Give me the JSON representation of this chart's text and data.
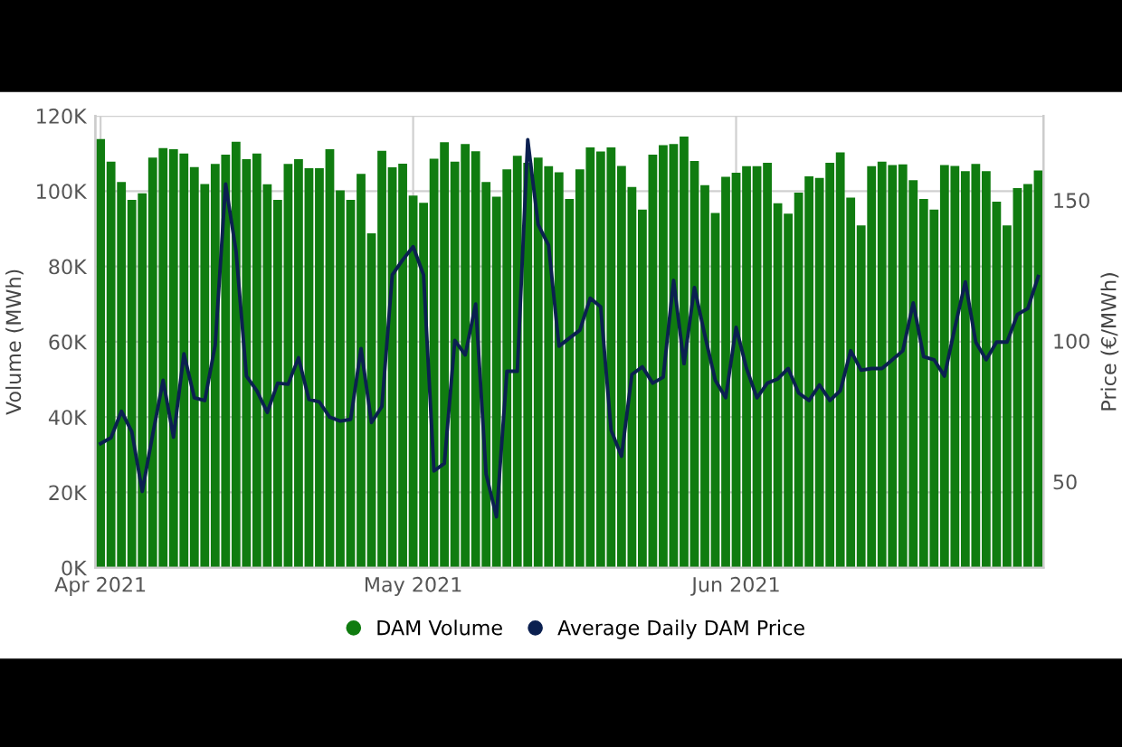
{
  "chart_data": {
    "type": "bar",
    "x": [
      "2021-04-01",
      "2021-04-02",
      "2021-04-03",
      "2021-04-04",
      "2021-04-05",
      "2021-04-06",
      "2021-04-07",
      "2021-04-08",
      "2021-04-09",
      "2021-04-10",
      "2021-04-11",
      "2021-04-12",
      "2021-04-13",
      "2021-04-14",
      "2021-04-15",
      "2021-04-16",
      "2021-04-17",
      "2021-04-18",
      "2021-04-19",
      "2021-04-20",
      "2021-04-21",
      "2021-04-22",
      "2021-04-23",
      "2021-04-24",
      "2021-04-25",
      "2021-04-26",
      "2021-04-27",
      "2021-04-28",
      "2021-04-29",
      "2021-04-30",
      "2021-05-01",
      "2021-05-02",
      "2021-05-03",
      "2021-05-04",
      "2021-05-05",
      "2021-05-06",
      "2021-05-07",
      "2021-05-08",
      "2021-05-09",
      "2021-05-10",
      "2021-05-11",
      "2021-05-12",
      "2021-05-13",
      "2021-05-14",
      "2021-05-15",
      "2021-05-16",
      "2021-05-17",
      "2021-05-18",
      "2021-05-19",
      "2021-05-20",
      "2021-05-21",
      "2021-05-22",
      "2021-05-23",
      "2021-05-24",
      "2021-05-25",
      "2021-05-26",
      "2021-05-27",
      "2021-05-28",
      "2021-05-29",
      "2021-05-30",
      "2021-05-31",
      "2021-06-01",
      "2021-06-02",
      "2021-06-03",
      "2021-06-04",
      "2021-06-05",
      "2021-06-06",
      "2021-06-07",
      "2021-06-08",
      "2021-06-09",
      "2021-06-10",
      "2021-06-11",
      "2021-06-12",
      "2021-06-13",
      "2021-06-14",
      "2021-06-15",
      "2021-06-16",
      "2021-06-17",
      "2021-06-18",
      "2021-06-19",
      "2021-06-20",
      "2021-06-21",
      "2021-06-22",
      "2021-06-23",
      "2021-06-24",
      "2021-06-25",
      "2021-06-26",
      "2021-06-27",
      "2021-06-28",
      "2021-06-29",
      "2021-06-30"
    ],
    "series": [
      {
        "name": "DAM Volume",
        "color": "#107c10",
        "values": [
          113.8,
          107.8,
          102.4,
          97.7,
          99.4,
          108.9,
          111.4,
          111.1,
          110,
          106.4,
          101.9,
          107.2,
          109.7,
          113.1,
          108.5,
          110,
          101.8,
          97.7,
          107.2,
          108.5,
          106.1,
          106.1,
          111.1,
          100.2,
          97.7,
          104.6,
          88.8,
          110.7,
          106.3,
          107.3,
          98.8,
          96.9,
          108.6,
          113,
          107.8,
          112.5,
          110.6,
          102.4,
          98.5,
          105.8,
          109.4,
          107.5,
          108.9,
          106.6,
          105,
          97.9,
          105.8,
          111.6,
          110.5,
          111.6,
          106.7,
          101.1,
          95.1,
          109.7,
          112.2,
          112.5,
          114.5,
          108,
          101.6,
          94.2,
          103.8,
          104.9,
          106.6,
          106.6,
          107.5,
          96.8,
          94,
          99.6,
          103.9,
          103.5,
          107.5,
          110.3,
          98.3,
          90.9,
          106.6,
          107.8,
          106.9,
          107.1,
          102.9,
          97.9,
          95.1,
          106.9,
          106.7,
          105.3,
          107.2,
          105.3,
          97.2,
          90.9,
          100.8,
          101.9,
          105.5
        ]
      },
      {
        "name": "Average Daily DAM Price",
        "type": "line",
        "axis": "y2",
        "color": "#0b2050",
        "values": [
          63.5,
          65.6,
          75,
          67.7,
          46.5,
          66.7,
          86,
          65.8,
          95.4,
          79.8,
          78.8,
          98.5,
          155.8,
          131.9,
          87.5,
          82.3,
          74.6,
          85,
          84.6,
          94,
          79.2,
          78.3,
          72.9,
          71.5,
          72.1,
          97.3,
          71,
          76.7,
          123.5,
          128.8,
          133.5,
          123.5,
          53.8,
          56.5,
          100.2,
          95,
          113.1,
          52.7,
          37.5,
          89.2,
          89.2,
          171.5,
          141.3,
          134,
          98.1,
          101,
          103.8,
          115.2,
          112.1,
          68.3,
          59,
          88.1,
          90.8,
          85,
          87.1,
          121.5,
          91.9,
          119,
          102,
          86,
          79.8,
          104.8,
          90.2,
          79.8,
          85,
          86.5,
          90.2,
          81.5,
          78.8,
          84.4,
          78.8,
          82.3,
          96.5,
          89.6,
          90.2,
          90.2,
          93.3,
          96.5,
          113.5,
          94.4,
          93.3,
          87.5,
          104.8,
          121,
          99.6,
          93.3,
          99.6,
          99.6,
          109.4,
          111.5,
          122.9
        ]
      }
    ],
    "ylabel": "Volume (MWh)",
    "y2label": "Price (€/MWh)",
    "xlim": [
      "2021-03-31T12:00",
      "2021-06-30T12:00"
    ],
    "xticks": [
      {
        "value": "2021-04-01",
        "label": "Apr 2021"
      },
      {
        "value": "2021-05-01",
        "label": "May 2021"
      },
      {
        "value": "2021-06-01",
        "label": "Jun 2021"
      }
    ],
    "ylim": [
      0,
      120
    ],
    "yticks": [
      {
        "value": 0,
        "label": "0K"
      },
      {
        "value": 20,
        "label": "20K"
      },
      {
        "value": 40,
        "label": "40K"
      },
      {
        "value": 60,
        "label": "60K"
      },
      {
        "value": 80,
        "label": "80K"
      },
      {
        "value": 100,
        "label": "100K"
      },
      {
        "value": 120,
        "label": "120K"
      }
    ],
    "y2lim": [
      19.4,
      180
    ],
    "y2ticks": [
      50,
      100,
      150
    ],
    "grid": true,
    "legend": "bottom"
  }
}
